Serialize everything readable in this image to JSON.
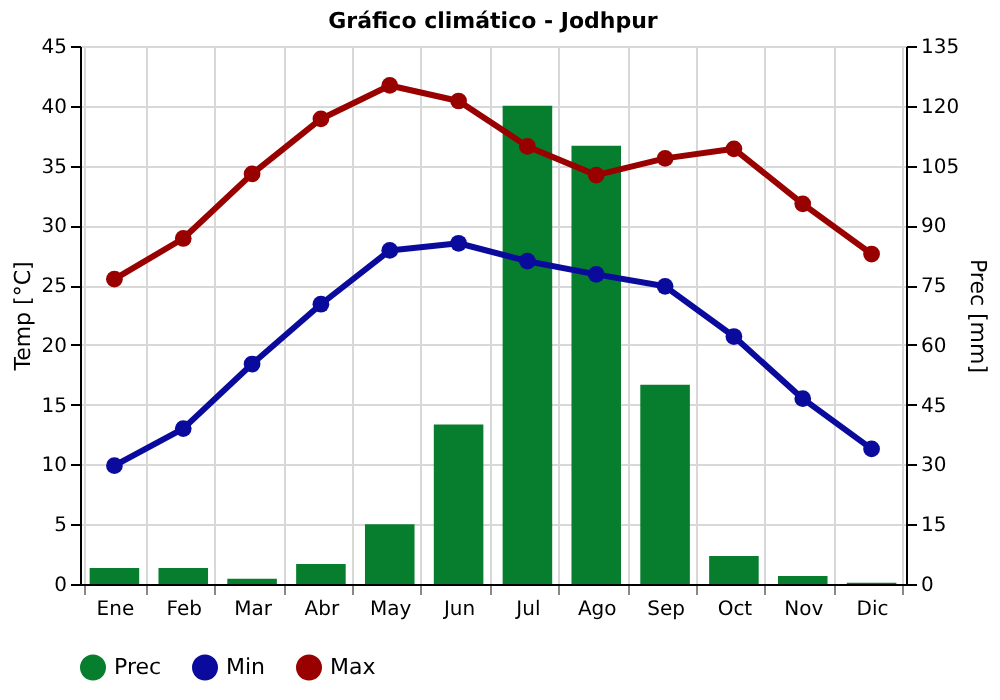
{
  "chart_data": {
    "type": "bar",
    "title": "Gráfico climático - Jodhpur",
    "categories": [
      "Ene",
      "Feb",
      "Mar",
      "Abr",
      "May",
      "Jun",
      "Jul",
      "Ago",
      "Sep",
      "Oct",
      "Nov",
      "Dic"
    ],
    "series": [
      {
        "name": "Prec",
        "axis": "y2",
        "color": "#077d2e",
        "values": [
          4,
          4,
          1.3,
          5,
          15,
          40,
          120,
          110,
          50,
          7,
          2,
          0.3
        ]
      },
      {
        "name": "Min",
        "type": "line",
        "color": "#0a0a9c",
        "marker": "circle",
        "values": [
          9.9,
          13.0,
          18.4,
          23.4,
          27.9,
          28.5,
          27.0,
          25.9,
          24.9,
          20.7,
          15.5,
          11.3
        ]
      },
      {
        "name": "Max",
        "type": "line",
        "color": "#990000",
        "marker": "circle",
        "values": [
          25.5,
          28.9,
          34.3,
          38.9,
          41.7,
          40.4,
          36.6,
          34.2,
          35.6,
          36.4,
          31.8,
          27.6
        ]
      }
    ],
    "ylabel": "Temp [°C]",
    "y2label": "Prec [mm]",
    "ylim": [
      0,
      45
    ],
    "yticks": [
      0,
      5,
      10,
      15,
      20,
      25,
      30,
      35,
      40,
      45
    ],
    "y2lim": [
      0,
      135
    ],
    "y2ticks": [
      0,
      15,
      30,
      45,
      60,
      75,
      90,
      105,
      120,
      135
    ],
    "grid": true,
    "legend": "bottom left"
  }
}
